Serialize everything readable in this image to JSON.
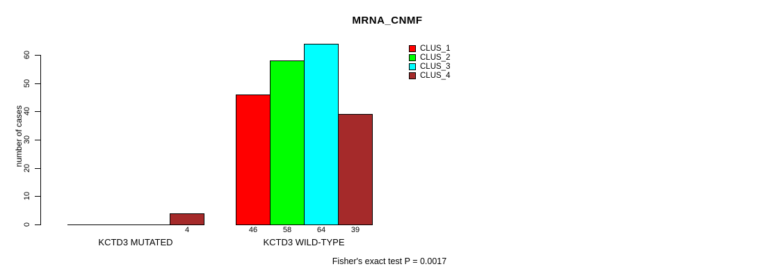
{
  "chart_data": {
    "type": "bar",
    "title": "MRNA_CNMF",
    "ylabel": "number of cases",
    "xlabel": "",
    "ylim": [
      0,
      60
    ],
    "yticks": [
      0,
      10,
      20,
      30,
      40,
      50,
      60
    ],
    "grid": false,
    "legend_position": "top-right",
    "categories": [
      "KCTD3 MUTATED",
      "KCTD3 WILD-TYPE"
    ],
    "series": [
      {
        "name": "CLUS_1",
        "color": "#ff0000",
        "values": [
          0,
          46
        ]
      },
      {
        "name": "CLUS_2",
        "color": "#00ff00",
        "values": [
          0,
          58
        ]
      },
      {
        "name": "CLUS_3",
        "color": "#00ffff",
        "values": [
          0,
          64
        ]
      },
      {
        "name": "CLUS_4",
        "color": "#a52a2a",
        "values": [
          4,
          39
        ]
      }
    ],
    "bar_labels": [
      [
        "",
        "",
        "",
        "4"
      ],
      [
        "46",
        "58",
        "64",
        "39"
      ]
    ],
    "annotation": "Fisher's exact test P = 0.0017",
    "colors": {
      "background": "#ffffff",
      "axis": "#000000",
      "bar_border": "#000000",
      "text": "#000000"
    }
  }
}
